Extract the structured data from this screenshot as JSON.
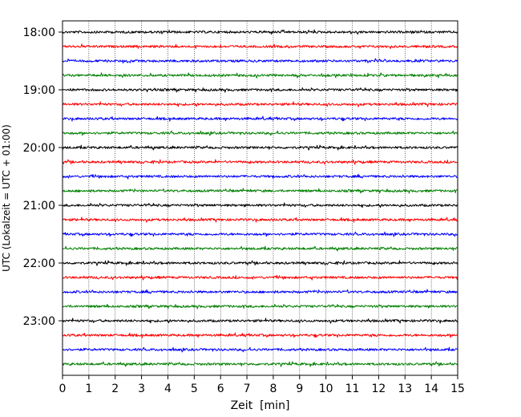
{
  "chart_data": {
    "type": "line",
    "title": "",
    "xlabel": "Zeit  [min]",
    "ylabel": "UTC (Lokalzeit = UTC + 01:00)",
    "xlim": [
      0,
      15
    ],
    "x_ticks": [
      "0",
      "1",
      "2",
      "3",
      "4",
      "5",
      "6",
      "7",
      "8",
      "9",
      "10",
      "11",
      "12",
      "13",
      "14",
      "15"
    ],
    "y_tick_labels": [
      "18:00",
      "19:00",
      "20:00",
      "21:00",
      "22:00",
      "23:00"
    ],
    "start_time": "18:00",
    "trace_interval_min": 15,
    "trace_count": 24,
    "trace_colors": [
      "#000000",
      "#ff0000",
      "#0000ff",
      "#008000"
    ],
    "grid": "vertical dotted",
    "legend": "none"
  }
}
